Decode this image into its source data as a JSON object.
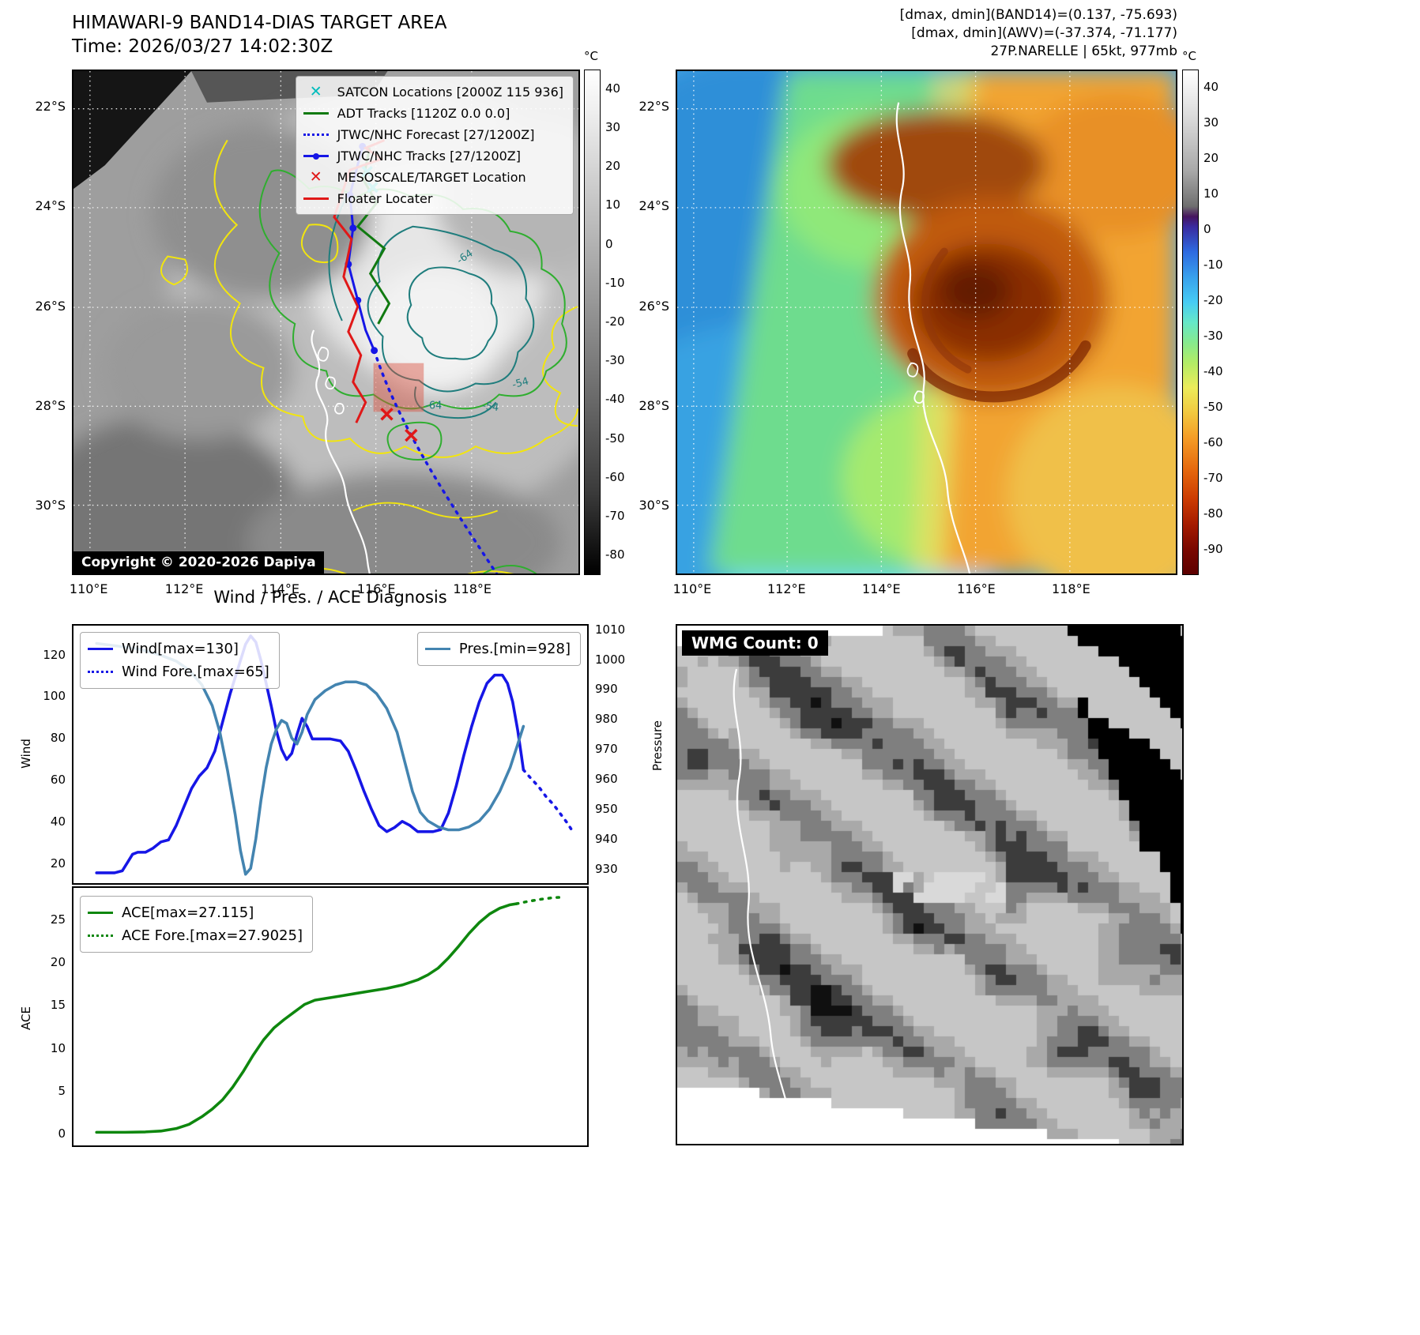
{
  "panels": {
    "band14": {
      "title": "HIMAWARI-9 BAND14-DIAS TARGET AREA",
      "time": "Time: 2026/03/27 14:02:30Z",
      "copyright": "Copyright © 2020-2026 Dapiya",
      "legend": [
        {
          "marker": "cyan-x",
          "label": "SATCON Locations [2000Z 115 936]"
        },
        {
          "marker": "green-line",
          "label": "ADT Tracks [1120Z 0.0 0.0]"
        },
        {
          "marker": "blue-dotted",
          "label": "JTWC/NHC Forecast [27/1200Z]"
        },
        {
          "marker": "blue-line-dot",
          "label": "JTWC/NHC Tracks [27/1200Z]"
        },
        {
          "marker": "red-x",
          "label": "MESOSCALE/TARGET Location"
        },
        {
          "marker": "red-line",
          "label": "Floater Locater"
        }
      ],
      "contour_labels": [
        "-64",
        "-54",
        "-64",
        "-54"
      ],
      "colorbar": {
        "unit": "°C",
        "ticks": [
          40,
          30,
          20,
          10,
          0,
          -10,
          -20,
          -30,
          -40,
          -50,
          -60,
          -70,
          -80
        ]
      },
      "lat_labels": [
        "22°S",
        "24°S",
        "26°S",
        "28°S",
        "30°S"
      ],
      "lon_labels": [
        "110°E",
        "112°E",
        "114°E",
        "116°E",
        "118°E"
      ]
    },
    "awv": {
      "header_lines": [
        "[dmax, dmin](BAND14)=(0.137, -75.693)",
        "[dmax, dmin](AWV)=(-37.374, -71.177)",
        "27P.NARELLE | 65kt, 977mb"
      ],
      "colorbar": {
        "unit": "°C",
        "ticks": [
          40,
          30,
          20,
          10,
          0,
          -10,
          -20,
          -30,
          -40,
          -50,
          -60,
          -70,
          -80,
          -90
        ]
      },
      "lat_labels": [
        "22°S",
        "24°S",
        "26°S",
        "28°S",
        "30°S"
      ],
      "lon_labels": [
        "110°E",
        "112°E",
        "114°E",
        "116°E",
        "118°E"
      ]
    },
    "wmg": {
      "label": "WMG Count: 0"
    }
  },
  "chart_data": [
    {
      "type": "line",
      "title": "Wind / Pres. / ACE Diagnosis",
      "ylabel_left": "Wind",
      "ylabel_right": "Pressure",
      "ylim_left": [
        10,
        135
      ],
      "ylim_right": [
        925,
        1012
      ],
      "y_left_ticks": [
        20,
        40,
        60,
        80,
        100,
        120
      ],
      "y_right_ticks": [
        930,
        940,
        950,
        960,
        970,
        980,
        990,
        1000,
        1010
      ],
      "x_range": [
        0,
        1
      ],
      "grid": false,
      "legend_left": [
        {
          "label": "Wind[max=130]",
          "color": "#1616e6",
          "style": "solid"
        },
        {
          "label": "Wind Fore.[max=65]",
          "color": "#1616e6",
          "style": "dotted"
        }
      ],
      "legend_right": [
        {
          "label": "Pres.[min=928]",
          "color": "#4384b0",
          "style": "solid"
        }
      ],
      "series": [
        {
          "name": "Wind",
          "axis": "left",
          "color": "#1616e6",
          "style": "solid",
          "points": [
            [
              0.045,
              15
            ],
            [
              0.08,
              15
            ],
            [
              0.095,
              16
            ],
            [
              0.105,
              20
            ],
            [
              0.115,
              24
            ],
            [
              0.125,
              25
            ],
            [
              0.14,
              25
            ],
            [
              0.155,
              27
            ],
            [
              0.17,
              30
            ],
            [
              0.185,
              31
            ],
            [
              0.2,
              38
            ],
            [
              0.215,
              47
            ],
            [
              0.23,
              56
            ],
            [
              0.245,
              62
            ],
            [
              0.26,
              66
            ],
            [
              0.275,
              74
            ],
            [
              0.29,
              88
            ],
            [
              0.305,
              102
            ],
            [
              0.32,
              114
            ],
            [
              0.335,
              126
            ],
            [
              0.345,
              130
            ],
            [
              0.355,
              127
            ],
            [
              0.365,
              118
            ],
            [
              0.375,
              107
            ],
            [
              0.385,
              96
            ],
            [
              0.395,
              84
            ],
            [
              0.405,
              75
            ],
            [
              0.415,
              70
            ],
            [
              0.425,
              73
            ],
            [
              0.435,
              82
            ],
            [
              0.445,
              90
            ],
            [
              0.455,
              86
            ],
            [
              0.465,
              80
            ],
            [
              0.48,
              80
            ],
            [
              0.5,
              80
            ],
            [
              0.52,
              79
            ],
            [
              0.535,
              74
            ],
            [
              0.55,
              65
            ],
            [
              0.565,
              55
            ],
            [
              0.58,
              46
            ],
            [
              0.595,
              38
            ],
            [
              0.61,
              35
            ],
            [
              0.625,
              37
            ],
            [
              0.64,
              40
            ],
            [
              0.655,
              38
            ],
            [
              0.67,
              35
            ],
            [
              0.685,
              35
            ],
            [
              0.7,
              35
            ],
            [
              0.715,
              36
            ],
            [
              0.73,
              44
            ],
            [
              0.745,
              57
            ],
            [
              0.76,
              72
            ],
            [
              0.775,
              86
            ],
            [
              0.79,
              98
            ],
            [
              0.805,
              107
            ],
            [
              0.82,
              111
            ],
            [
              0.835,
              111
            ],
            [
              0.845,
              107
            ],
            [
              0.855,
              98
            ],
            [
              0.865,
              84
            ],
            [
              0.872,
              72
            ],
            [
              0.876,
              65
            ]
          ]
        },
        {
          "name": "Wind Forecast",
          "axis": "left",
          "color": "#1616e6",
          "style": "dotted",
          "points": [
            [
              0.876,
              65
            ],
            [
              0.89,
              61
            ],
            [
              0.905,
              57
            ],
            [
              0.92,
              52
            ],
            [
              0.935,
              48
            ],
            [
              0.95,
              43
            ],
            [
              0.962,
              39
            ],
            [
              0.972,
              35
            ]
          ]
        },
        {
          "name": "Pressure",
          "axis": "right",
          "color": "#4384b0",
          "style": "solid",
          "points": [
            [
              0.045,
              1006
            ],
            [
              0.09,
              1005
            ],
            [
              0.13,
              1004
            ],
            [
              0.17,
              1002
            ],
            [
              0.2,
              1000
            ],
            [
              0.225,
              997
            ],
            [
              0.25,
              992
            ],
            [
              0.27,
              985
            ],
            [
              0.285,
              976
            ],
            [
              0.3,
              963
            ],
            [
              0.315,
              948
            ],
            [
              0.325,
              936
            ],
            [
              0.335,
              928
            ],
            [
              0.345,
              930
            ],
            [
              0.355,
              940
            ],
            [
              0.365,
              953
            ],
            [
              0.375,
              964
            ],
            [
              0.385,
              972
            ],
            [
              0.395,
              977
            ],
            [
              0.405,
              980
            ],
            [
              0.415,
              979
            ],
            [
              0.425,
              974
            ],
            [
              0.435,
              972
            ],
            [
              0.445,
              976
            ],
            [
              0.455,
              982
            ],
            [
              0.47,
              987
            ],
            [
              0.49,
              990
            ],
            [
              0.51,
              992
            ],
            [
              0.53,
              993
            ],
            [
              0.55,
              993
            ],
            [
              0.57,
              992
            ],
            [
              0.59,
              989
            ],
            [
              0.61,
              984
            ],
            [
              0.63,
              976
            ],
            [
              0.645,
              966
            ],
            [
              0.66,
              956
            ],
            [
              0.675,
              949
            ],
            [
              0.69,
              946
            ],
            [
              0.71,
              944
            ],
            [
              0.73,
              943
            ],
            [
              0.75,
              943
            ],
            [
              0.77,
              944
            ],
            [
              0.79,
              946
            ],
            [
              0.81,
              950
            ],
            [
              0.83,
              956
            ],
            [
              0.85,
              964
            ],
            [
              0.865,
              972
            ],
            [
              0.876,
              978
            ]
          ]
        }
      ]
    },
    {
      "type": "line",
      "ylabel_left": "ACE",
      "ylim_left": [
        -1.5,
        29
      ],
      "y_left_ticks": [
        0,
        5,
        10,
        15,
        20,
        25
      ],
      "x_range": [
        0,
        1
      ],
      "grid": false,
      "legend_left": [
        {
          "label": "ACE[max=27.115]",
          "color": "#0e870e",
          "style": "solid"
        },
        {
          "label": "ACE Fore.[max=27.9025]",
          "color": "#0e870e",
          "style": "dotted"
        }
      ],
      "series": [
        {
          "name": "ACE",
          "axis": "left",
          "color": "#0e870e",
          "style": "solid",
          "points": [
            [
              0.045,
              0.05
            ],
            [
              0.1,
              0.05
            ],
            [
              0.14,
              0.1
            ],
            [
              0.17,
              0.2
            ],
            [
              0.2,
              0.5
            ],
            [
              0.225,
              1.0
            ],
            [
              0.25,
              1.9
            ],
            [
              0.27,
              2.8
            ],
            [
              0.29,
              3.9
            ],
            [
              0.31,
              5.4
            ],
            [
              0.33,
              7.2
            ],
            [
              0.35,
              9.2
            ],
            [
              0.37,
              11.0
            ],
            [
              0.39,
              12.4
            ],
            [
              0.41,
              13.4
            ],
            [
              0.43,
              14.3
            ],
            [
              0.45,
              15.2
            ],
            [
              0.47,
              15.7
            ],
            [
              0.49,
              15.9
            ],
            [
              0.52,
              16.2
            ],
            [
              0.55,
              16.5
            ],
            [
              0.58,
              16.8
            ],
            [
              0.61,
              17.1
            ],
            [
              0.64,
              17.5
            ],
            [
              0.67,
              18.1
            ],
            [
              0.69,
              18.7
            ],
            [
              0.71,
              19.5
            ],
            [
              0.73,
              20.7
            ],
            [
              0.75,
              22.1
            ],
            [
              0.77,
              23.6
            ],
            [
              0.79,
              24.9
            ],
            [
              0.81,
              25.9
            ],
            [
              0.83,
              26.6
            ],
            [
              0.85,
              27.0
            ],
            [
              0.862,
              27.115
            ]
          ]
        },
        {
          "name": "ACE Forecast",
          "axis": "left",
          "color": "#0e870e",
          "style": "dotted",
          "points": [
            [
              0.862,
              27.115
            ],
            [
              0.885,
              27.4
            ],
            [
              0.91,
              27.65
            ],
            [
              0.935,
              27.85
            ],
            [
              0.955,
              27.9
            ]
          ]
        }
      ]
    }
  ],
  "colors": {
    "wind": "#1616e6",
    "pressure": "#4384b0",
    "ace": "#0e870e",
    "track_red": "#e01818",
    "track_green": "#117a11",
    "satcon_cyan": "#00bdbd"
  }
}
